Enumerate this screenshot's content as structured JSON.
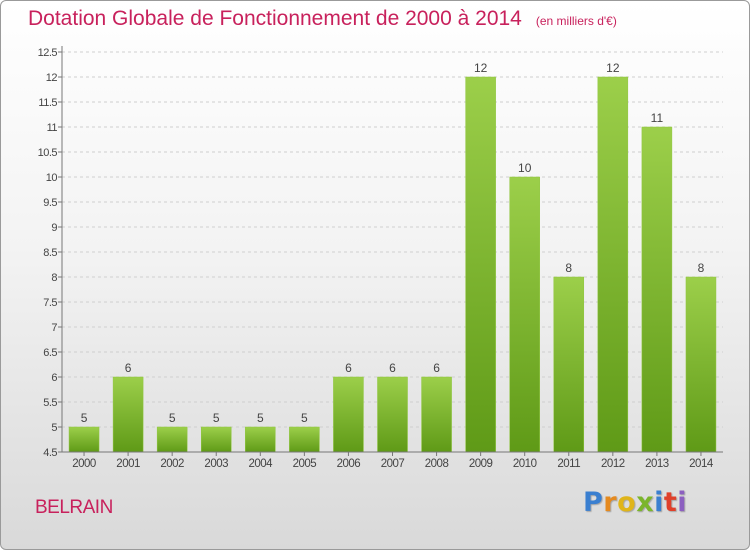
{
  "chart_data": {
    "type": "bar",
    "title": "Dotation Globale de Fonctionnement de 2000 à 2014",
    "subtitle": "(en milliers d'€)",
    "categories": [
      "2000",
      "2001",
      "2002",
      "2003",
      "2004",
      "2005",
      "2006",
      "2007",
      "2008",
      "2009",
      "2010",
      "2011",
      "2012",
      "2013",
      "2014"
    ],
    "values": [
      5,
      6,
      5,
      5,
      5,
      5,
      6,
      6,
      6,
      12,
      10,
      8,
      12,
      11,
      8
    ],
    "labels": [
      "5",
      "6",
      "5",
      "5",
      "5",
      "5",
      "6",
      "6",
      "6",
      "12",
      "10",
      "8",
      "12",
      "11",
      "8"
    ],
    "ylim": [
      4.5,
      12.5
    ],
    "yticks": [
      4.5,
      5,
      5.5,
      6,
      6.5,
      7,
      7.5,
      8,
      8.5,
      9,
      9.5,
      10,
      10.5,
      11,
      11.5,
      12,
      12.5
    ],
    "ytick_labels": [
      "4.5",
      "5",
      "5.5",
      "6",
      "6.5",
      "7",
      "7.5",
      "8",
      "8.5",
      "9",
      "9.5",
      "10",
      "10.5",
      "11",
      "11.5",
      "12",
      "12.5"
    ],
    "grid": "horizontal dashed",
    "bar_color": "#78b52a"
  },
  "commune": "BELRAIN",
  "logo": {
    "text": "Proxiti",
    "letters": [
      "P",
      "r",
      "o",
      "x",
      "i",
      "t",
      "i"
    ]
  }
}
